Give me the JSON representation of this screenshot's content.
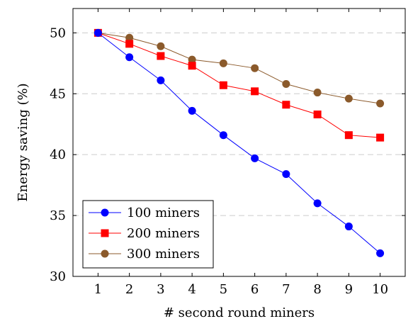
{
  "chart_data": {
    "type": "line",
    "xlabel": "# second round miners",
    "ylabel": "Energy saving (%)",
    "x": [
      1,
      2,
      3,
      4,
      5,
      6,
      7,
      8,
      9,
      10
    ],
    "xlim": [
      0.2,
      10.8
    ],
    "ylim": [
      30,
      52
    ],
    "yticks": [
      30,
      35,
      40,
      45,
      50
    ],
    "grid": "horizontal dashed",
    "legend_position": "bottom-left",
    "series": [
      {
        "name": "100 miners",
        "marker": "circle",
        "color": "#0000ff",
        "values": [
          50,
          48.0,
          46.1,
          43.6,
          41.6,
          39.7,
          38.4,
          36.0,
          34.1,
          31.9
        ]
      },
      {
        "name": "200 miners",
        "marker": "square",
        "color": "#ff0000",
        "values": [
          50,
          49.1,
          48.1,
          47.3,
          45.7,
          45.2,
          44.1,
          43.3,
          41.6,
          41.4
        ]
      },
      {
        "name": "300 miners",
        "marker": "circle",
        "color": "#8b5a2b",
        "values": [
          50,
          49.6,
          48.9,
          47.8,
          47.5,
          47.1,
          45.8,
          45.1,
          44.6,
          44.2
        ]
      }
    ]
  }
}
